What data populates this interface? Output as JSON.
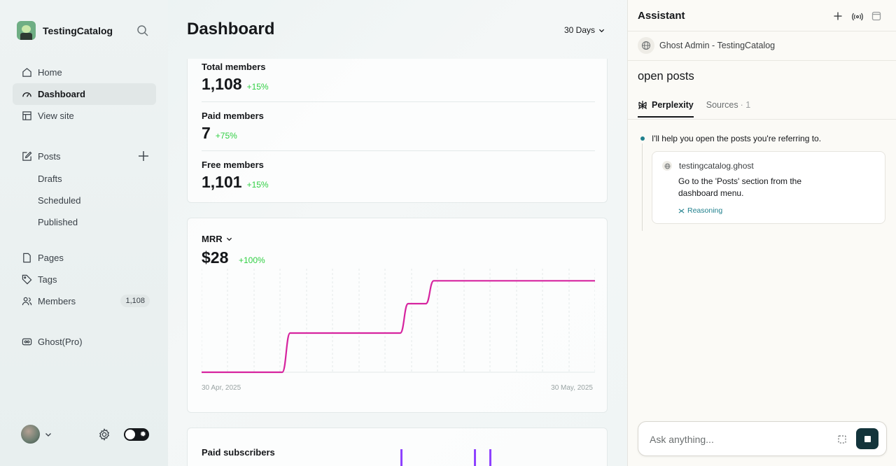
{
  "sidebar": {
    "brand": "TestingCatalog",
    "items": [
      {
        "label": "Home",
        "icon": "home-icon"
      },
      {
        "label": "Dashboard",
        "icon": "dashboard-icon"
      },
      {
        "label": "View site",
        "icon": "layout-icon"
      },
      {
        "label": "Posts",
        "icon": "edit-icon"
      },
      {
        "label": "Drafts"
      },
      {
        "label": "Scheduled"
      },
      {
        "label": "Published"
      },
      {
        "label": "Pages",
        "icon": "page-icon"
      },
      {
        "label": "Tags",
        "icon": "tag-icon"
      },
      {
        "label": "Members",
        "icon": "members-icon",
        "count": "1,108"
      },
      {
        "label": "Ghost(Pro)",
        "icon": "ghost-pro-icon"
      }
    ],
    "active": "Dashboard"
  },
  "main": {
    "title": "Dashboard",
    "range": "30 Days",
    "metrics": [
      {
        "label": "Total members",
        "value": "1,108",
        "delta": "+15%"
      },
      {
        "label": "Paid members",
        "value": "7",
        "delta": "+75%"
      },
      {
        "label": "Free members",
        "value": "1,101",
        "delta": "+15%"
      }
    ],
    "mrr": {
      "label": "MRR",
      "value": "$28",
      "delta": "+100%",
      "x_start": "30 Apr, 2025",
      "x_end": "30 May, 2025"
    },
    "paid_subscribers": {
      "label": "Paid subscribers"
    }
  },
  "chart_data": {
    "type": "line",
    "title": "MRR",
    "x": [
      "30 Apr, 2025",
      "",
      "",
      "",
      "",
      "",
      "",
      "",
      "",
      "",
      "30 May, 2025"
    ],
    "series": [
      {
        "values": [
          0,
          0,
          0,
          0,
          1,
          1,
          1,
          1,
          1,
          1,
          1
        ]
      }
    ],
    "line_points": [
      {
        "x": 0,
        "y": 0
      },
      {
        "x": 20.5,
        "y": 0
      },
      {
        "x": 22.5,
        "y": 12
      },
      {
        "x": 50.5,
        "y": 12
      },
      {
        "x": 52.5,
        "y": 21
      },
      {
        "x": 57,
        "y": 21
      },
      {
        "x": 59,
        "y": 28
      },
      {
        "x": 100,
        "y": 28
      }
    ],
    "xlim": [
      0,
      100
    ],
    "ylim": [
      0,
      30
    ],
    "color": "#d6249f",
    "grid": "vertical-dashed",
    "paid_subscriber_bars": [
      {
        "x": 50.5
      },
      {
        "x": 69.3
      },
      {
        "x": 73.2
      }
    ],
    "bar_color": "#8e42ff"
  },
  "assistant": {
    "title": "Assistant",
    "source": "Ghost Admin - TestingCatalog",
    "query": "open posts",
    "tabs": [
      {
        "label": "Perplexity"
      },
      {
        "label": "Sources",
        "count": "· 1"
      }
    ],
    "step": "I'll help you open the posts you're referring to.",
    "result": {
      "site": "testingcatalog.ghost",
      "text": "Go to the 'Posts' section from the dashboard menu.",
      "reasoning": "Reasoning"
    },
    "input_placeholder": "Ask anything..."
  },
  "colors": {
    "accent_green": "#30cf43",
    "chart_line": "#d6249f",
    "perplexity_teal": "#20808d",
    "send_button": "#13343b"
  }
}
